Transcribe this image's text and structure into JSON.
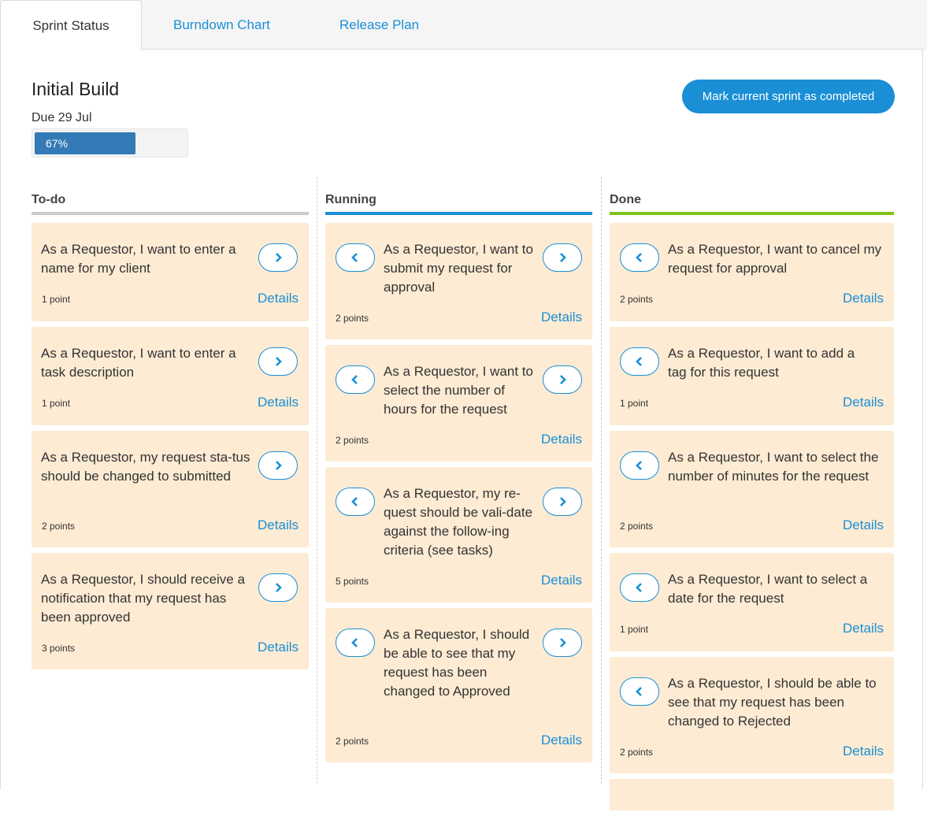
{
  "tabs": [
    {
      "label": "Sprint Status",
      "active": true
    },
    {
      "label": "Burndown Chart",
      "active": false
    },
    {
      "label": "Release Plan",
      "active": false
    }
  ],
  "sprint": {
    "title": "Initial Build",
    "due": "Due 29 Jul",
    "progress_label": "67%",
    "progress_value": 0.67,
    "complete_button": "Mark current sprint as completed"
  },
  "columns": [
    {
      "title": "To-do",
      "accent": "#cccccc",
      "cards": [
        {
          "text": "As a Requestor, I want to enter a name for my client",
          "points": "1 point",
          "details": "Details"
        },
        {
          "text": "As a Requestor, I want to enter a task description",
          "points": "1 point",
          "details": "Details"
        },
        {
          "text": "As a Requestor, my request sta-tus should be changed to submitted",
          "points": "2 points",
          "details": "Details"
        },
        {
          "text": "As a Requestor, I should receive a notification that my request has been approved",
          "points": "3 points",
          "details": "Details"
        }
      ]
    },
    {
      "title": "Running",
      "accent": "#1a8fd6",
      "cards": [
        {
          "text": "As a Requestor, I want to submit my request for approval",
          "points": "2 points",
          "details": "Details"
        },
        {
          "text": "As a Requestor, I want to select the number of hours for the request",
          "points": "2 points",
          "details": "Details"
        },
        {
          "text": "As a Requestor, my re-quest should be vali-date against the follow-ing criteria (see tasks)",
          "points": "5 points",
          "details": "Details"
        },
        {
          "text": "As a Requestor, I should be able to see that my request has been changed to Approved",
          "points": "2 points",
          "details": "Details"
        }
      ]
    },
    {
      "title": "Done",
      "accent": "#7cc21a",
      "cards": [
        {
          "text": "As a Requestor, I want to cancel my request for approval",
          "points": "2 points",
          "details": "Details"
        },
        {
          "text": "As a Requestor, I want to add a tag for this request",
          "points": "1 point",
          "details": "Details"
        },
        {
          "text": "As a Requestor, I want to select the number of minutes for the request",
          "points": "2 points",
          "details": "Details"
        },
        {
          "text": "As a Requestor, I want to select a date for the request",
          "points": "1 point",
          "details": "Details"
        },
        {
          "text": "As a Requestor, I should be able to see that my request has been changed to Rejected",
          "points": "2 points",
          "details": "Details"
        }
      ]
    }
  ]
}
